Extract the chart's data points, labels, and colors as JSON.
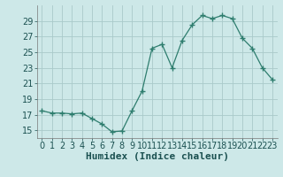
{
  "x": [
    0,
    1,
    2,
    3,
    4,
    5,
    6,
    7,
    8,
    9,
    10,
    11,
    12,
    13,
    14,
    15,
    16,
    17,
    18,
    19,
    20,
    21,
    22,
    23
  ],
  "y": [
    17.5,
    17.2,
    17.2,
    17.1,
    17.2,
    16.5,
    15.8,
    14.8,
    14.9,
    17.5,
    20.0,
    25.5,
    26.0,
    23.0,
    26.5,
    28.5,
    29.7,
    29.3,
    29.7,
    29.3,
    26.8,
    25.5,
    23.0,
    21.5
  ],
  "line_color": "#2e7d6e",
  "marker": "+",
  "marker_size": 4,
  "marker_linewidth": 1.0,
  "bg_color": "#cde8e8",
  "grid_color": "#aacaca",
  "xlabel": "Humidex (Indice chaleur)",
  "xlabel_fontsize": 8,
  "tick_fontsize": 7,
  "ylim": [
    14,
    31
  ],
  "xlim": [
    -0.5,
    23.5
  ],
  "yticks": [
    15,
    17,
    19,
    21,
    23,
    25,
    27,
    29
  ],
  "xticks": [
    0,
    1,
    2,
    3,
    4,
    5,
    6,
    7,
    8,
    9,
    10,
    11,
    12,
    13,
    14,
    15,
    16,
    17,
    18,
    19,
    20,
    21,
    22,
    23
  ]
}
